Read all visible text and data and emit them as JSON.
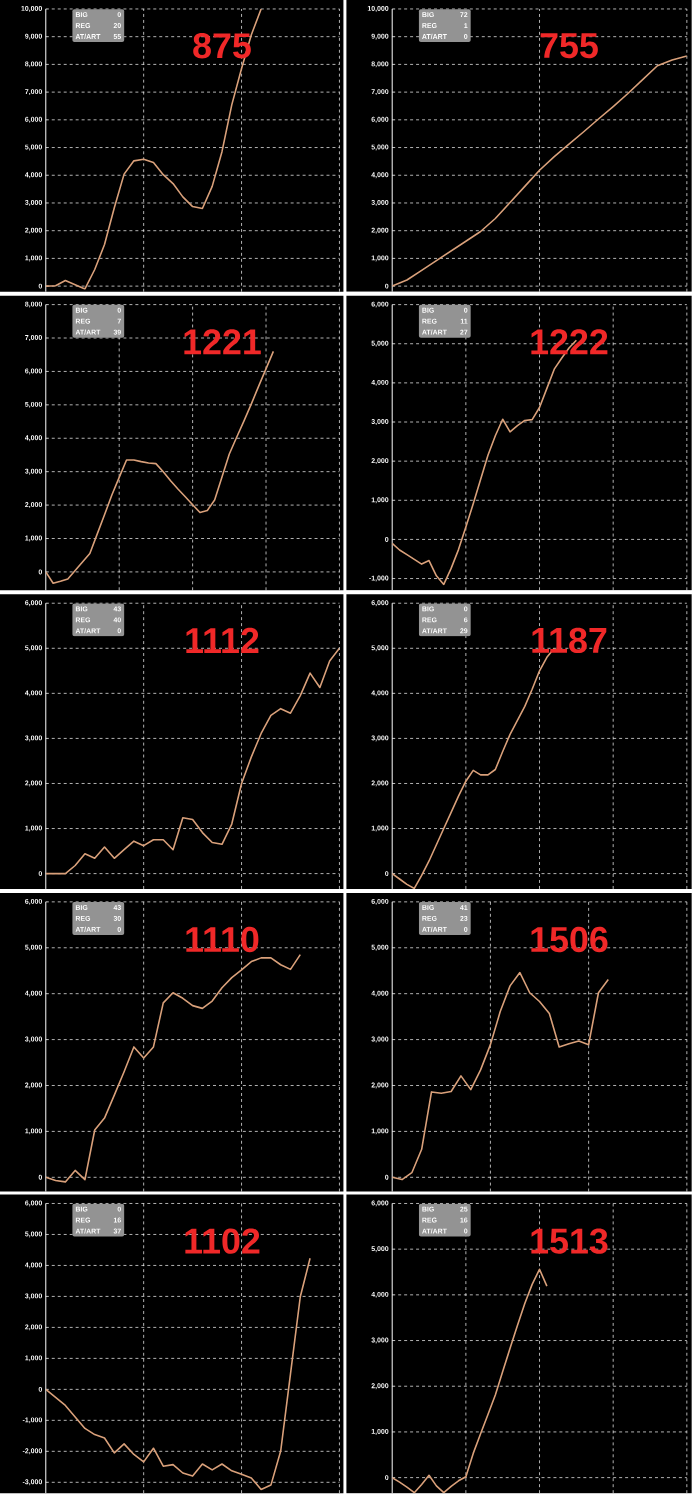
{
  "chart_data": [
    {
      "type": "line",
      "title": "875",
      "annotations": [
        "BIG",
        "0",
        "REG",
        "20",
        "AT/ART",
        "55"
      ],
      "color": "#d9a07a",
      "grid": true,
      "tick_labels": "y",
      "ylim": [
        -200,
        10000
      ],
      "yticks": [
        {
          "value": 0,
          "label": "0"
        },
        {
          "value": 1000,
          "label": "1,000"
        },
        {
          "value": 2000,
          "label": "2,000"
        },
        {
          "value": 3000,
          "label": "3,000"
        },
        {
          "value": 4000,
          "label": "4,000"
        },
        {
          "value": 5000,
          "label": "5,000"
        },
        {
          "value": 6000,
          "label": "6,000"
        },
        {
          "value": 7000,
          "label": "7,000"
        },
        {
          "value": 8000,
          "label": "8,000"
        },
        {
          "value": 9000,
          "label": "9,000"
        },
        {
          "value": 10000,
          "label": "10,000"
        }
      ],
      "categories": [
        null,
        null,
        null,
        null,
        null,
        null,
        null,
        null,
        null,
        null,
        null,
        null,
        null,
        null,
        null,
        null,
        null,
        null,
        null,
        null,
        null,
        null,
        null,
        null,
        null,
        null,
        null,
        null,
        null,
        null,
        null
      ],
      "values": [
        0,
        15,
        200,
        50,
        -100,
        600,
        1500,
        2830,
        4040,
        4520,
        4580,
        4460,
        4020,
        3700,
        3220,
        2870,
        2800,
        3600,
        4850,
        6540,
        7850,
        9070,
        10000,
        null,
        null,
        null,
        null,
        null,
        null,
        null,
        null
      ]
    },
    {
      "type": "line",
      "title": "755",
      "annotations": [
        "BIG",
        "72",
        "REG",
        "1",
        "AT/ART",
        "0"
      ],
      "color": "#d9a07a",
      "grid": true,
      "tick_labels": "y",
      "ylim": [
        -200,
        10000
      ],
      "yticks": [
        {
          "value": 0,
          "label": "0"
        },
        {
          "value": 1000,
          "label": "1,000"
        },
        {
          "value": 2000,
          "label": "2,000"
        },
        {
          "value": 3000,
          "label": "3,000"
        },
        {
          "value": 4000,
          "label": "4,000"
        },
        {
          "value": 5000,
          "label": "5,000"
        },
        {
          "value": 6000,
          "label": "6,000"
        },
        {
          "value": 7000,
          "label": "7,000"
        },
        {
          "value": 8000,
          "label": "8,000"
        },
        {
          "value": 9000,
          "label": "9,000"
        },
        {
          "value": 10000,
          "label": "10,000"
        }
      ],
      "categories": [
        null,
        null,
        null,
        null,
        null,
        null,
        null,
        null,
        null,
        null,
        null,
        null,
        null,
        null,
        null,
        null,
        null,
        null,
        null,
        null,
        null
      ],
      "values": [
        0,
        220,
        570,
        920,
        1270,
        1620,
        1970,
        2440,
        3020,
        3600,
        4180,
        4670,
        5120,
        5570,
        6030,
        6480,
        6950,
        7450,
        7950,
        8160,
        8300
      ]
    },
    {
      "type": "line",
      "title": "1221",
      "annotations": [
        "BIG",
        "0",
        "REG",
        "7",
        "AT/ART",
        "39"
      ],
      "color": "#d9a07a",
      "grid": true,
      "tick_labels": "y",
      "ylim": [
        -550,
        8000
      ],
      "yticks": [
        {
          "value": 0,
          "label": "0"
        },
        {
          "value": 1000,
          "label": "1,000"
        },
        {
          "value": 2000,
          "label": "2,000"
        },
        {
          "value": 3000,
          "label": "3,000"
        },
        {
          "value": 4000,
          "label": "4,000"
        },
        {
          "value": 5000,
          "label": "5,000"
        },
        {
          "value": 6000,
          "label": "6,000"
        },
        {
          "value": 7000,
          "label": "7,000"
        },
        {
          "value": 8000,
          "label": "8,000"
        }
      ],
      "categories": [
        null,
        null,
        null,
        null,
        null,
        null,
        null,
        null,
        null,
        null,
        null,
        null,
        null,
        null,
        null,
        null,
        null,
        null,
        null,
        null,
        null,
        null,
        null,
        null,
        null,
        null,
        null,
        null,
        null,
        null,
        null,
        null,
        null,
        null,
        null,
        null,
        null,
        null,
        null,
        null,
        null
      ],
      "values": [
        0,
        -340,
        -280,
        -210,
        40,
        300,
        550,
        1130,
        1710,
        2300,
        2830,
        3350,
        3350,
        3300,
        3260,
        3240,
        3000,
        2730,
        2480,
        2250,
        2010,
        1780,
        1840,
        2150,
        2840,
        3530,
        4030,
        4520,
        5030,
        5560,
        6080,
        6600,
        null,
        null,
        null,
        null,
        null,
        null,
        null,
        null,
        null
      ]
    },
    {
      "type": "line",
      "title": "1222",
      "annotations": [
        "BIG",
        "0",
        "REG",
        "11",
        "AT/ART",
        "27"
      ],
      "color": "#d9a07a",
      "grid": true,
      "tick_labels": "y",
      "ylim": [
        -1300,
        6000
      ],
      "yticks": [
        {
          "value": -1000,
          "label": "-1,000"
        },
        {
          "value": 0,
          "label": "0"
        },
        {
          "value": 1000,
          "label": "1,000"
        },
        {
          "value": 2000,
          "label": "2,000"
        },
        {
          "value": 3000,
          "label": "3,000"
        },
        {
          "value": 4000,
          "label": "4,000"
        },
        {
          "value": 5000,
          "label": "5,000"
        },
        {
          "value": 6000,
          "label": "6,000"
        }
      ],
      "categories": [
        null,
        null,
        null,
        null,
        null,
        null,
        null,
        null,
        null,
        null,
        null,
        null,
        null,
        null,
        null,
        null,
        null,
        null,
        null,
        null,
        null,
        null,
        null,
        null,
        null,
        null,
        null,
        null,
        null,
        null,
        null,
        null,
        null,
        null,
        null,
        null,
        null,
        null,
        null,
        null,
        null
      ],
      "values": [
        -100,
        -270,
        -390,
        -510,
        -630,
        -540,
        -930,
        -1150,
        -740,
        -260,
        320,
        910,
        1530,
        2150,
        2650,
        3070,
        2750,
        2910,
        3040,
        3060,
        3370,
        3860,
        4350,
        4630,
        4890,
        5090,
        null,
        null,
        null,
        null,
        null,
        null,
        null,
        null,
        null,
        null,
        null,
        null,
        null,
        null,
        null
      ]
    },
    {
      "type": "line",
      "title": "1112",
      "annotations": [
        "BIG",
        "43",
        "REG",
        "40",
        "AT/ART",
        "0"
      ],
      "color": "#d9a07a",
      "grid": true,
      "tick_labels": "y",
      "ylim": [
        -340,
        6000
      ],
      "yticks": [
        {
          "value": 0,
          "label": "0"
        },
        {
          "value": 1000,
          "label": "1,000"
        },
        {
          "value": 2000,
          "label": "2,000"
        },
        {
          "value": 3000,
          "label": "3,000"
        },
        {
          "value": 4000,
          "label": "4,000"
        },
        {
          "value": 5000,
          "label": "5,000"
        },
        {
          "value": 6000,
          "label": "6,000"
        }
      ],
      "categories": [
        null,
        null,
        null,
        null,
        null,
        null,
        null,
        null,
        null,
        null,
        null,
        null,
        null,
        null,
        null,
        null,
        null,
        null,
        null,
        null,
        null,
        null,
        null,
        null,
        null,
        null,
        null,
        null,
        null,
        null,
        null
      ],
      "values": [
        0,
        0,
        0,
        180,
        440,
        340,
        590,
        340,
        530,
        720,
        620,
        750,
        750,
        530,
        1240,
        1200,
        910,
        690,
        650,
        1100,
        2000,
        2590,
        3110,
        3510,
        3660,
        3560,
        3950,
        4450,
        4130,
        4720,
        5000
      ]
    },
    {
      "type": "line",
      "title": "1187",
      "annotations": [
        "BIG",
        "0",
        "REG",
        "6",
        "AT/ART",
        "29"
      ],
      "color": "#d9a07a",
      "grid": true,
      "tick_labels": "y",
      "ylim": [
        -340,
        6000
      ],
      "yticks": [
        {
          "value": 0,
          "label": "0"
        },
        {
          "value": 1000,
          "label": "1,000"
        },
        {
          "value": 2000,
          "label": "2,000"
        },
        {
          "value": 3000,
          "label": "3,000"
        },
        {
          "value": 4000,
          "label": "4,000"
        },
        {
          "value": 5000,
          "label": "5,000"
        },
        {
          "value": 6000,
          "label": "6,000"
        }
      ],
      "categories": [
        null,
        null,
        null,
        null,
        null,
        null,
        null,
        null,
        null,
        null,
        null,
        null,
        null,
        null,
        null,
        null,
        null,
        null,
        null,
        null,
        null,
        null,
        null,
        null,
        null,
        null,
        null,
        null,
        null,
        null,
        null,
        null,
        null,
        null,
        null,
        null,
        null,
        null,
        null,
        null,
        null
      ],
      "values": [
        0,
        -120,
        -240,
        -330,
        -40,
        280,
        640,
        1000,
        1360,
        1720,
        2050,
        2290,
        2190,
        2190,
        2310,
        2710,
        3090,
        3400,
        3710,
        4090,
        4500,
        4800,
        5000,
        null,
        null,
        null,
        null,
        null,
        null,
        null,
        null,
        null,
        null,
        null,
        null,
        null,
        null,
        null,
        null,
        null,
        null
      ]
    },
    {
      "type": "line",
      "title": "1110",
      "annotations": [
        "BIG",
        "43",
        "REG",
        "30",
        "AT/ART",
        "0"
      ],
      "color": "#d9a07a",
      "grid": true,
      "tick_labels": "y",
      "ylim": [
        -310,
        6000
      ],
      "yticks": [
        {
          "value": 0,
          "label": "0"
        },
        {
          "value": 1000,
          "label": "1,000"
        },
        {
          "value": 2000,
          "label": "2,000"
        },
        {
          "value": 3000,
          "label": "3,000"
        },
        {
          "value": 4000,
          "label": "4,000"
        },
        {
          "value": 5000,
          "label": "5,000"
        },
        {
          "value": 6000,
          "label": "6,000"
        }
      ],
      "categories": [
        null,
        null,
        null,
        null,
        null,
        null,
        null,
        null,
        null,
        null,
        null,
        null,
        null,
        null,
        null,
        null,
        null,
        null,
        null,
        null,
        null,
        null,
        null,
        null,
        null,
        null,
        null,
        null,
        null,
        null,
        null
      ],
      "values": [
        0,
        -70,
        -100,
        150,
        -50,
        1030,
        1290,
        1790,
        2300,
        2840,
        2600,
        2840,
        3800,
        4020,
        3900,
        3740,
        3680,
        3840,
        4130,
        4350,
        4520,
        4700,
        4780,
        4780,
        4630,
        4530,
        4850,
        null,
        null,
        null,
        null
      ]
    },
    {
      "type": "line",
      "title": "1506",
      "annotations": [
        "BIG",
        "41",
        "REG",
        "23",
        "AT/ART",
        "0"
      ],
      "color": "#d9a07a",
      "grid": true,
      "tick_labels": "y",
      "ylim": [
        -310,
        6000
      ],
      "yticks": [
        {
          "value": 0,
          "label": "0"
        },
        {
          "value": 1000,
          "label": "1,000"
        },
        {
          "value": 2000,
          "label": "2,000"
        },
        {
          "value": 3000,
          "label": "3,000"
        },
        {
          "value": 4000,
          "label": "4,000"
        },
        {
          "value": 5000,
          "label": "5,000"
        },
        {
          "value": 6000,
          "label": "6,000"
        }
      ],
      "categories": [
        null,
        null,
        null,
        null,
        null,
        null,
        null,
        null,
        null,
        null,
        null,
        null,
        null,
        null,
        null,
        null,
        null,
        null,
        null,
        null,
        null,
        null,
        null,
        null,
        null,
        null,
        null,
        null,
        null,
        null,
        null
      ],
      "values": [
        0,
        -50,
        100,
        610,
        1860,
        1830,
        1870,
        2210,
        1910,
        2340,
        2890,
        3610,
        4170,
        4460,
        4020,
        3830,
        3570,
        2840,
        2910,
        2970,
        2890,
        4020,
        4310,
        null,
        null,
        null,
        null,
        null,
        null,
        null,
        null
      ]
    },
    {
      "type": "line",
      "title": "1102",
      "annotations": [
        "BIG",
        "0",
        "REG",
        "16",
        "AT/ART",
        "37"
      ],
      "color": "#d9a07a",
      "grid": true,
      "tick_labels": "y",
      "ylim": [
        -3350,
        6000
      ],
      "yticks": [
        {
          "value": -3000,
          "label": "-3,000"
        },
        {
          "value": -2000,
          "label": "-2,000"
        },
        {
          "value": -1000,
          "label": "-1,000"
        },
        {
          "value": 0,
          "label": "0"
        },
        {
          "value": 1000,
          "label": "1,000"
        },
        {
          "value": 2000,
          "label": "2,000"
        },
        {
          "value": 3000,
          "label": "3,000"
        },
        {
          "value": 4000,
          "label": "4,000"
        },
        {
          "value": 5000,
          "label": "5,000"
        },
        {
          "value": 6000,
          "label": "6,000"
        }
      ],
      "categories": [
        null,
        null,
        null,
        null,
        null,
        null,
        null,
        null,
        null,
        null,
        null,
        null,
        null,
        null,
        null,
        null,
        null,
        null,
        null,
        null,
        null,
        null,
        null,
        null,
        null,
        null,
        null,
        null,
        null,
        null,
        null
      ],
      "values": [
        0,
        -260,
        -520,
        -890,
        -1260,
        -1460,
        -1570,
        -2050,
        -1760,
        -2100,
        -2340,
        -1900,
        -2480,
        -2430,
        -2700,
        -2800,
        -2410,
        -2600,
        -2410,
        -2630,
        -2740,
        -2860,
        -3230,
        -3090,
        -1990,
        500,
        2990,
        4230,
        null,
        null,
        null
      ]
    },
    {
      "type": "line",
      "title": "1513",
      "annotations": [
        "BIG",
        "25",
        "REG",
        "16",
        "AT/ART",
        "0"
      ],
      "color": "#d9a07a",
      "grid": true,
      "tick_labels": "y",
      "ylim": [
        -340,
        6000
      ],
      "yticks": [
        {
          "value": 0,
          "label": "0"
        },
        {
          "value": 1000,
          "label": "1,000"
        },
        {
          "value": 2000,
          "label": "2,000"
        },
        {
          "value": 3000,
          "label": "3,000"
        },
        {
          "value": 4000,
          "label": "4,000"
        },
        {
          "value": 5000,
          "label": "5,000"
        },
        {
          "value": 6000,
          "label": "6,000"
        }
      ],
      "categories": [
        null,
        null,
        null,
        null,
        null,
        null,
        null,
        null,
        null,
        null,
        null,
        null,
        null,
        null,
        null,
        null,
        null,
        null,
        null,
        null,
        null,
        null,
        null,
        null,
        null,
        null,
        null,
        null,
        null,
        null,
        null,
        null,
        null,
        null,
        null,
        null,
        null,
        null,
        null,
        null,
        null
      ],
      "values": [
        0,
        -100,
        -210,
        -330,
        -150,
        50,
        -180,
        -330,
        -190,
        -70,
        20,
        530,
        960,
        1380,
        1810,
        2320,
        2830,
        3330,
        3810,
        4230,
        4560,
        4190,
        null,
        null,
        null,
        null,
        null,
        null,
        null,
        null,
        null,
        null,
        null,
        null,
        null,
        null,
        null,
        null,
        null,
        null,
        null
      ]
    }
  ]
}
